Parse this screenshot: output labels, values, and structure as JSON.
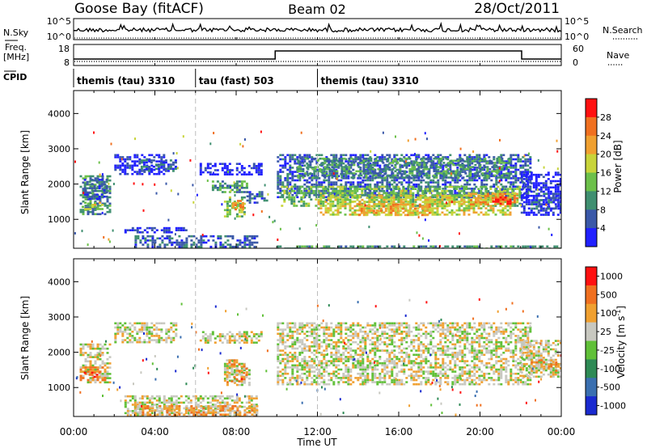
{
  "header": {
    "station": "Goose Bay (fitACF)",
    "beam": "Beam 02",
    "date": "28/Oct/2011"
  },
  "strip_labels": {
    "nsky": "N.Sky",
    "nsearch": "N.Search",
    "freq_line1": "Freq.",
    "freq_line2": "[MHz]",
    "nave": "Nave",
    "cpid": "CPID",
    "nsky_ticks": [
      "10^5",
      "10^0"
    ],
    "freq_ticks": [
      "18",
      "8"
    ],
    "nave_ticks": [
      "60",
      "0"
    ]
  },
  "cpid_segments": [
    {
      "label": "themis (tau) 3310",
      "start_h": 0,
      "end_h": 6
    },
    {
      "label": "tau (fast) 503",
      "start_h": 6,
      "end_h": 12
    },
    {
      "label": "themis (tau) 3310",
      "start_h": 12,
      "end_h": 24
    }
  ],
  "time_axis": {
    "label": "Time UT",
    "ticks": [
      "00:00",
      "04:00",
      "08:00",
      "12:00",
      "16:00",
      "20:00",
      "00:00"
    ],
    "range_h": [
      0,
      24
    ]
  },
  "chart_data": [
    {
      "type": "heatmap",
      "name": "power",
      "ylabel": "Slant Range [km]",
      "ylim": [
        180,
        4650
      ],
      "yticks": [
        1000,
        2000,
        3000,
        4000
      ],
      "colorbar_label": "Power [dB]",
      "colorbar_ticks": [
        "4",
        "8",
        "12",
        "16",
        "20",
        "24",
        "28"
      ],
      "colorbar_colors": [
        "#2020ff",
        "#3a58a8",
        "#3f8f70",
        "#6cc04a",
        "#c8d43a",
        "#f0a030",
        "#f07020",
        "#ff1010"
      ],
      "backscatter_regions": [
        {
          "t0": 0.3,
          "t1": 1.8,
          "r0": 1150,
          "r1": 2250,
          "level": 2
        },
        {
          "t0": 0.4,
          "t1": 1.4,
          "r0": 1300,
          "r1": 1500,
          "level": 4
        },
        {
          "t0": 0.5,
          "t1": 1.6,
          "r0": 1600,
          "r1": 2150,
          "level": 1
        },
        {
          "t0": 2.0,
          "t1": 4.5,
          "r0": 2300,
          "r1": 2850,
          "level": 0
        },
        {
          "t0": 3.3,
          "t1": 5.0,
          "r0": 2400,
          "r1": 2700,
          "level": 1
        },
        {
          "t0": 6.2,
          "t1": 9.2,
          "r0": 2300,
          "r1": 2600,
          "level": 0
        },
        {
          "t0": 6.8,
          "t1": 8.5,
          "r0": 1800,
          "r1": 2100,
          "level": 2
        },
        {
          "t0": 7.4,
          "t1": 8.4,
          "r0": 1100,
          "r1": 1650,
          "level": 3
        },
        {
          "t0": 7.8,
          "t1": 8.3,
          "r0": 1300,
          "r1": 1550,
          "level": 5
        },
        {
          "t0": 8.5,
          "t1": 9.5,
          "r0": 1500,
          "r1": 1800,
          "level": 1
        },
        {
          "t0": 2.5,
          "t1": 5.5,
          "r0": 650,
          "r1": 780,
          "level": 0
        },
        {
          "t0": 3.0,
          "t1": 9.0,
          "r0": 200,
          "r1": 550,
          "level": 1
        },
        {
          "t0": 10.0,
          "t1": 22.5,
          "r0": 1600,
          "r1": 2850,
          "level": 1
        },
        {
          "t0": 11.0,
          "t1": 21.5,
          "r0": 2200,
          "r1": 2750,
          "level": 2
        },
        {
          "t0": 10.2,
          "t1": 22.0,
          "r0": 1400,
          "r1": 1950,
          "level": 3
        },
        {
          "t0": 12.0,
          "t1": 21.5,
          "r0": 1150,
          "r1": 1700,
          "level": 4
        },
        {
          "t0": 14.0,
          "t1": 17.5,
          "r0": 1150,
          "r1": 1450,
          "level": 5
        },
        {
          "t0": 19.5,
          "t1": 21.8,
          "r0": 1400,
          "r1": 1750,
          "level": 5
        },
        {
          "t0": 20.6,
          "t1": 21.5,
          "r0": 1450,
          "r1": 1650,
          "level": 7
        },
        {
          "t0": 22.0,
          "t1": 24.0,
          "r0": 1100,
          "r1": 2350,
          "level": 0
        },
        {
          "t0": 22.5,
          "t1": 24.0,
          "r0": 1300,
          "r1": 1750,
          "level": 1
        },
        {
          "t0": 10.0,
          "t1": 24.0,
          "r0": 180,
          "r1": 260,
          "level": 2
        }
      ]
    },
    {
      "type": "heatmap",
      "name": "velocity",
      "ylabel": "Slant Range [km]",
      "ylim": [
        180,
        4650
      ],
      "yticks": [
        1000,
        2000,
        3000,
        4000
      ],
      "colorbar_label": "Velocity [m s^-1]",
      "colorbar_ticks": [
        "1000",
        "500",
        "100",
        "25",
        "-25",
        "-100",
        "-500",
        "-1000"
      ],
      "colorbar_colors": [
        "#1a2ad0",
        "#3a6fb0",
        "#2e8a55",
        "#60c038",
        "#c8c8c0",
        "#f0a030",
        "#f07020",
        "#ff1010"
      ],
      "backscatter_regions": [
        {
          "t0": 0.3,
          "t1": 1.8,
          "r0": 1150,
          "r1": 2250,
          "level": 4
        },
        {
          "t0": 0.3,
          "t1": 1.6,
          "r0": 1200,
          "r1": 1600,
          "level": 5
        },
        {
          "t0": 0.5,
          "t1": 1.3,
          "r0": 1300,
          "r1": 1450,
          "level": 6
        },
        {
          "t0": 2.0,
          "t1": 5.0,
          "r0": 2300,
          "r1": 2850,
          "level": 4
        },
        {
          "t0": 6.2,
          "t1": 9.2,
          "r0": 2300,
          "r1": 2600,
          "level": 4
        },
        {
          "t0": 7.4,
          "t1": 8.6,
          "r0": 1100,
          "r1": 1700,
          "level": 4
        },
        {
          "t0": 7.5,
          "t1": 8.5,
          "r0": 1200,
          "r1": 1800,
          "level": 5
        },
        {
          "t0": 2.5,
          "t1": 9.0,
          "r0": 200,
          "r1": 780,
          "level": 4
        },
        {
          "t0": 3.0,
          "t1": 9.0,
          "r0": 200,
          "r1": 500,
          "level": 5
        },
        {
          "t0": 10.0,
          "t1": 22.5,
          "r0": 1100,
          "r1": 2850,
          "level": 4
        },
        {
          "t0": 22.0,
          "t1": 24.0,
          "r0": 1300,
          "r1": 2350,
          "level": 4
        },
        {
          "t0": 22.5,
          "t1": 24.0,
          "r0": 1500,
          "r1": 1800,
          "level": 5
        }
      ]
    }
  ]
}
